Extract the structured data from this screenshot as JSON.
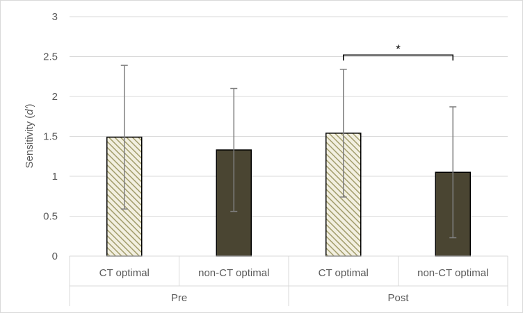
{
  "chart_data": {
    "type": "bar",
    "title": "",
    "xlabel": "",
    "ylabel": "Sensitivity (d')",
    "ylabel_parts": {
      "prefix": "Sensitivity (",
      "italic": "d'",
      "suffix": ")"
    },
    "ylim": [
      0,
      3
    ],
    "yticks": [
      0,
      0.5,
      1,
      1.5,
      2,
      2.5,
      3
    ],
    "ytick_labels": [
      "0",
      "0.5",
      "1",
      "1.5",
      "2",
      "2.5",
      "3"
    ],
    "grid": true,
    "groups": [
      "Pre",
      "Post"
    ],
    "categories": [
      "CT optimal",
      "non-CT optimal",
      "CT optimal",
      "non-CT optimal"
    ],
    "group_of_category": [
      0,
      0,
      1,
      1
    ],
    "values": [
      1.49,
      1.33,
      1.54,
      1.05
    ],
    "error_upper": [
      2.39,
      2.1,
      2.34,
      1.87
    ],
    "error_lower": [
      0.59,
      0.56,
      0.74,
      0.23
    ],
    "bar_styles": [
      "hatched",
      "solid",
      "hatched",
      "solid"
    ],
    "significance": {
      "from_index": 2,
      "to_index": 3,
      "label": "*",
      "y": 2.52
    },
    "colors": {
      "solid": "#4a4532",
      "hatch_light": "#f2efe0",
      "hatch_dark": "#a29d6c",
      "grid": "#d9d9d9",
      "error": "#7f7f7f",
      "text": "#595959"
    }
  }
}
